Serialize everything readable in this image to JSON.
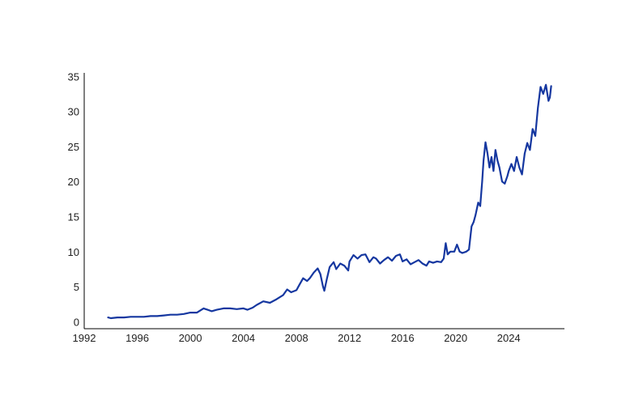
{
  "chart_data": {
    "type": "line",
    "title": "",
    "xlabel": "",
    "ylabel": "",
    "xlim": [
      1992,
      2028.2
    ],
    "ylim": [
      -1,
      35.5
    ],
    "x_ticks": [
      "1992",
      "1996",
      "2000",
      "2004",
      "2008",
      "2012",
      "2016",
      "2020",
      "2024"
    ],
    "y_ticks": [
      "0",
      "5",
      "10",
      "15",
      "20",
      "25",
      "30",
      "35"
    ],
    "grid": false,
    "legend": "none",
    "series": [
      {
        "color": "#1537a0",
        "x": [
          1993.8,
          1994.0,
          1994.5,
          1995.0,
          1995.5,
          1996.0,
          1996.5,
          1997.0,
          1997.5,
          1998.0,
          1998.5,
          1999.0,
          1999.5,
          2000.0,
          2000.5,
          2001.0,
          2001.3,
          2001.6,
          2002.0,
          2002.5,
          2003.0,
          2003.5,
          2004.0,
          2004.3,
          2004.7,
          2005.0,
          2005.5,
          2006.0,
          2006.5,
          2007.0,
          2007.3,
          2007.6,
          2008.0,
          2008.2,
          2008.5,
          2008.8,
          2009.0,
          2009.3,
          2009.6,
          2009.8,
          2010.0,
          2010.1,
          2010.3,
          2010.5,
          2010.8,
          2011.0,
          2011.3,
          2011.6,
          2011.9,
          2012.0,
          2012.3,
          2012.6,
          2012.9,
          2013.2,
          2013.5,
          2013.8,
          2014.0,
          2014.3,
          2014.6,
          2014.9,
          2015.2,
          2015.5,
          2015.8,
          2016.0,
          2016.3,
          2016.6,
          2016.9,
          2017.2,
          2017.5,
          2017.8,
          2018.0,
          2018.3,
          2018.6,
          2018.9,
          2019.1,
          2019.25,
          2019.4,
          2019.6,
          2019.9,
          2020.1,
          2020.3,
          2020.5,
          2020.8,
          2021.0,
          2021.2,
          2021.35,
          2021.5,
          2021.7,
          2021.85,
          2022.0,
          2022.1,
          2022.25,
          2022.4,
          2022.55,
          2022.7,
          2022.85,
          2023.0,
          2023.15,
          2023.3,
          2023.5,
          2023.7,
          2023.9,
          2024.0,
          2024.2,
          2024.4,
          2024.6,
          2024.8,
          2025.0,
          2025.2,
          2025.4,
          2025.6,
          2025.8,
          2026.0,
          2026.2,
          2026.4,
          2026.6,
          2026.8,
          2027.0,
          2027.1,
          2027.2
        ],
        "y": [
          0.6,
          0.5,
          0.6,
          0.6,
          0.7,
          0.7,
          0.7,
          0.8,
          0.8,
          0.9,
          1.0,
          1.0,
          1.1,
          1.3,
          1.3,
          1.9,
          1.7,
          1.5,
          1.7,
          1.9,
          1.9,
          1.8,
          1.9,
          1.7,
          2.0,
          2.4,
          2.9,
          2.7,
          3.2,
          3.8,
          4.6,
          4.2,
          4.5,
          5.2,
          6.2,
          5.8,
          6.2,
          7.0,
          7.6,
          6.8,
          5.0,
          4.4,
          6.2,
          7.8,
          8.5,
          7.5,
          8.3,
          8.0,
          7.3,
          8.6,
          9.5,
          9.0,
          9.5,
          9.6,
          8.5,
          9.2,
          9.0,
          8.3,
          8.8,
          9.2,
          8.7,
          9.4,
          9.6,
          8.6,
          8.9,
          8.2,
          8.5,
          8.8,
          8.3,
          8.0,
          8.6,
          8.4,
          8.6,
          8.5,
          9.0,
          11.2,
          9.6,
          10.0,
          10.0,
          11.0,
          10.0,
          9.8,
          10.0,
          10.3,
          13.6,
          14.2,
          15.2,
          17.0,
          16.5,
          20.0,
          23.0,
          25.6,
          24.0,
          22.0,
          23.5,
          21.5,
          24.5,
          23.0,
          22.0,
          20.0,
          19.7,
          20.8,
          21.5,
          22.5,
          21.5,
          23.5,
          22.0,
          21.0,
          24.0,
          25.5,
          24.5,
          27.5,
          26.5,
          30.5,
          33.5,
          32.5,
          33.8,
          31.5,
          32.0,
          33.6
        ]
      }
    ]
  }
}
